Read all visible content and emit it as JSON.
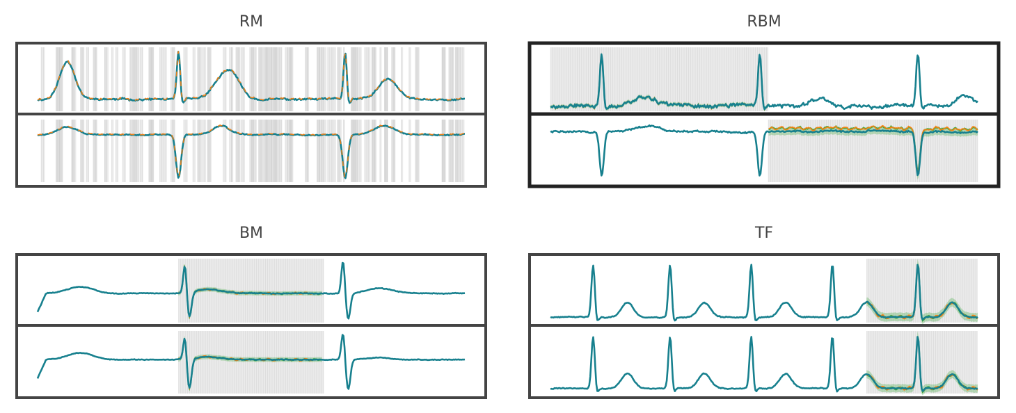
{
  "colors": {
    "ground_truth": "#1f77b4",
    "reconstruction": "#ff7f0e",
    "samples_band": "#2ca02c",
    "overlay_teal": "#17808e",
    "mask": "#d9d9d9",
    "frame": "#444444",
    "frame_dark": "#222222"
  },
  "chart_data": [
    {
      "type": "line",
      "title": "RM",
      "masking": "random",
      "channels": 2,
      "x_range": [
        0,
        1
      ],
      "series": [
        "ground_truth",
        "reconstruction",
        "samples"
      ]
    },
    {
      "type": "line",
      "title": "RBM",
      "masking": "random-block",
      "channels": 2,
      "masked_intervals": [
        {
          "channel": 1,
          "x": [
            0.0,
            0.51
          ]
        },
        {
          "channel": 2,
          "x": [
            0.51,
            1.0
          ]
        }
      ],
      "x_range": [
        0,
        1
      ],
      "series": [
        "ground_truth",
        "reconstruction",
        "samples"
      ]
    },
    {
      "type": "line",
      "title": "BM",
      "masking": "block",
      "channels": 2,
      "masked_intervals": [
        {
          "channel": 1,
          "x": [
            0.33,
            0.67
          ]
        },
        {
          "channel": 2,
          "x": [
            0.33,
            0.67
          ]
        }
      ],
      "x_range": [
        0,
        1
      ],
      "series": [
        "ground_truth",
        "reconstruction",
        "samples"
      ]
    },
    {
      "type": "line",
      "title": "TF",
      "masking": "forecast",
      "channels": 2,
      "masked_intervals": [
        {
          "channel": 1,
          "x": [
            0.74,
            1.0
          ]
        },
        {
          "channel": 2,
          "x": [
            0.74,
            1.0
          ]
        }
      ],
      "x_range": [
        0,
        1
      ],
      "series": [
        "ground_truth",
        "reconstruction",
        "samples"
      ]
    }
  ]
}
